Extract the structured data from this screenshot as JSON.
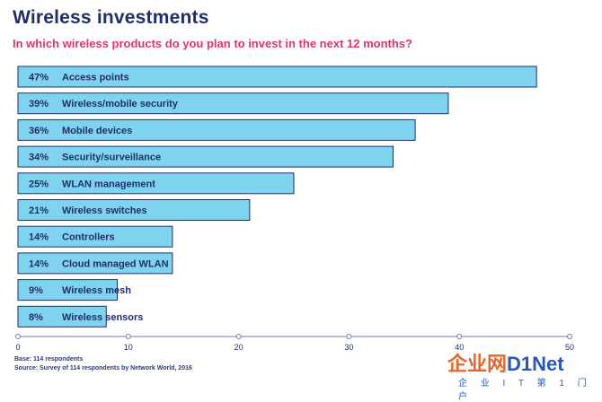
{
  "title": "Wireless investments",
  "subtitle": "In which wireless products do you plan to invest in the next 12 months?",
  "chart_data": {
    "type": "bar",
    "orientation": "horizontal",
    "categories": [
      "Access points",
      "Wireless/mobile security",
      "Mobile devices",
      "Security/surveillance",
      "WLAN management",
      "Wireless switches",
      "Controllers",
      "Cloud managed WLAN",
      "Wireless mesh",
      "Wireless sensors"
    ],
    "values": [
      47,
      39,
      36,
      34,
      25,
      21,
      14,
      14,
      9,
      8
    ],
    "value_labels": [
      "47%",
      "39%",
      "36%",
      "34%",
      "25%",
      "21%",
      "14%",
      "14%",
      "9%",
      "8%"
    ],
    "xlim": [
      0,
      50
    ],
    "xticks": [
      0,
      10,
      20,
      30,
      40,
      50
    ],
    "bar_color": "#7fd3ef",
    "bar_edge_color": "#1f2f6b",
    "text_color": "#1f2f6b",
    "grid": false
  },
  "footnotes": [
    "Base: 114 respondents",
    "Source: Survey of 114 respondents by Network World, 2016"
  ],
  "watermark": {
    "text_cn": "企业网",
    "text_brand": "D1Net",
    "text_sub": "企 业 I T 第 1 门 户"
  },
  "colors": {
    "title": "#1f2f6b",
    "subtitle": "#e0336f"
  }
}
